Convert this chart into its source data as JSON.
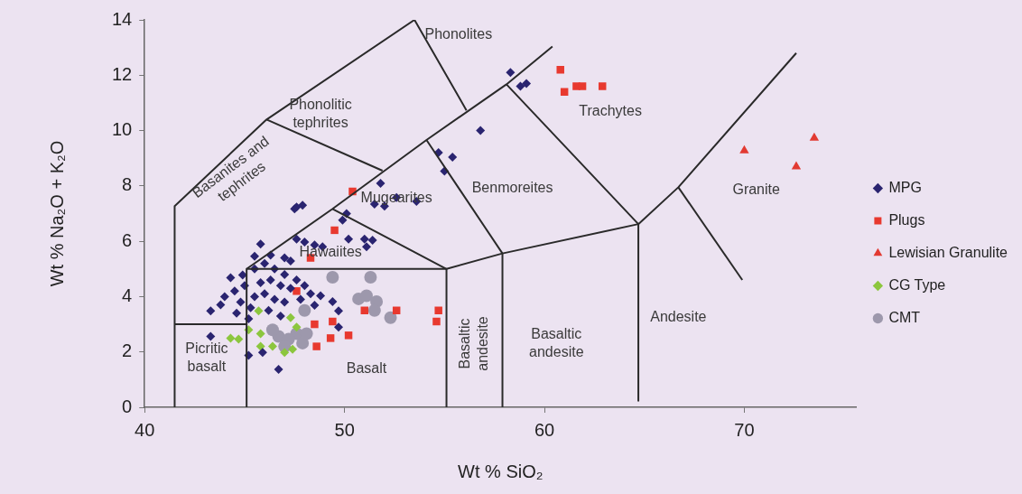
{
  "chart_data": {
    "type": "scatter",
    "xlabel": "Wt % SiO₂",
    "ylabel": "Wt % Na₂O + K₂O",
    "xlim": [
      40,
      75.6
    ],
    "ylim": [
      0,
      14
    ],
    "xticks": [
      40,
      50,
      60,
      70
    ],
    "yticks": [
      0,
      2,
      4,
      6,
      8,
      10,
      12,
      14
    ],
    "grid": false,
    "legend": "right",
    "series": [
      {
        "type": "line",
        "marker": "none",
        "color": "#2a2a2a",
        "x": [
          41.5,
          41.5,
          46.1,
          53.5,
          56.1
        ],
        "values": [
          0,
          7.27,
          10.4,
          14.0,
          10.73
        ]
      },
      {
        "type": "line",
        "marker": "none",
        "color": "#2a2a2a",
        "x": [
          41.5,
          45.1
        ],
        "values": [
          3.0,
          3.0
        ]
      },
      {
        "type": "line",
        "marker": "none",
        "color": "#2a2a2a",
        "x": [
          45.1,
          45.1,
          55.1,
          55.1
        ],
        "values": [
          0,
          5.0,
          5.0,
          0
        ]
      },
      {
        "type": "line",
        "marker": "none",
        "color": "#2a2a2a",
        "x": [
          45.1,
          49.4,
          54.1,
          58.1,
          60.4
        ],
        "values": [
          5.0,
          7.17,
          9.66,
          11.67,
          13.04
        ]
      },
      {
        "type": "line",
        "marker": "none",
        "color": "#2a2a2a",
        "x": [
          46.1,
          51.9
        ],
        "values": [
          10.4,
          8.55
        ]
      },
      {
        "type": "line",
        "marker": "none",
        "color": "#2a2a2a",
        "x": [
          49.4,
          55.1,
          57.9,
          64.7
        ],
        "values": [
          7.17,
          5.0,
          5.56,
          6.62
        ]
      },
      {
        "type": "line",
        "marker": "none",
        "color": "#2a2a2a",
        "x": [
          54.1,
          57.9,
          57.9
        ],
        "values": [
          9.66,
          5.56,
          0
        ]
      },
      {
        "type": "line",
        "marker": "none",
        "color": "#2a2a2a",
        "x": [
          58.1,
          64.7,
          64.7
        ],
        "values": [
          11.67,
          6.62,
          0.24
        ]
      },
      {
        "type": "line",
        "marker": "none",
        "color": "#2a2a2a",
        "x": [
          64.7,
          66.7,
          72.6
        ],
        "values": [
          6.62,
          7.95,
          12.8
        ]
      },
      {
        "type": "line",
        "marker": "none",
        "color": "#2a2a2a",
        "x": [
          66.7,
          69.9
        ],
        "values": [
          7.95,
          4.6
        ]
      },
      {
        "name": "MPG",
        "marker": "diamond",
        "color": "#2a2470",
        "x": [
          58.3,
          58.8,
          59.1,
          56.8,
          54.7,
          55.4,
          55.0,
          52.6,
          53.6,
          51.8,
          51.5,
          52.0,
          47.6,
          47.9,
          50.1,
          49.9,
          50.2,
          51.0,
          51.4,
          51.1,
          48.0,
          48.5,
          48.9,
          47.6,
          47.3,
          48.8,
          49.4,
          48.5,
          49.7,
          49.7,
          46.7,
          47.5,
          45.8,
          45.5,
          44.3,
          44.9,
          43.3,
          43.3,
          45.2,
          45.9,
          45.5,
          46.0,
          46.5,
          47.0,
          45.8,
          46.3,
          46.8,
          47.3,
          45.5,
          46.0,
          46.5,
          47.0,
          45.3,
          46.2,
          46.8,
          44.8,
          44.5,
          45.0,
          45.2,
          44.6,
          47.6,
          46.3,
          47.0,
          44.0,
          43.8,
          48.0,
          47.8,
          48.3
        ],
        "values": [
          12.1,
          11.6,
          11.7,
          10.0,
          9.2,
          9.04,
          8.53,
          7.58,
          7.44,
          8.09,
          7.34,
          7.27,
          7.24,
          7.3,
          7.0,
          6.76,
          6.08,
          6.08,
          6.04,
          5.8,
          5.97,
          5.87,
          5.8,
          6.08,
          5.29,
          4.03,
          3.82,
          3.69,
          3.48,
          2.9,
          1.37,
          7.17,
          5.9,
          5.46,
          4.68,
          4.78,
          3.48,
          2.56,
          1.88,
          1.98,
          5.0,
          5.2,
          5.0,
          4.8,
          4.5,
          4.6,
          4.4,
          4.3,
          4.0,
          4.1,
          3.9,
          3.8,
          3.6,
          3.5,
          3.3,
          3.8,
          4.2,
          4.4,
          3.2,
          3.4,
          4.6,
          5.5,
          5.4,
          4.0,
          3.7,
          4.4,
          3.9,
          4.1
        ]
      },
      {
        "name": "Plugs",
        "marker": "square",
        "color": "#e8392f",
        "x": [
          60.8,
          61.0,
          61.6,
          61.9,
          62.9,
          50.4,
          49.5,
          48.3,
          47.6,
          51.0,
          52.6,
          54.7,
          54.6,
          48.5,
          49.4,
          49.3,
          50.2,
          48.6
        ],
        "values": [
          12.2,
          11.4,
          11.6,
          11.6,
          11.6,
          7.8,
          6.4,
          5.4,
          4.2,
          3.5,
          3.5,
          3.5,
          3.1,
          3.0,
          3.1,
          2.5,
          2.6,
          2.2
        ]
      },
      {
        "name": "Lewisian Granulite",
        "marker": "triangle",
        "color": "#e23a32",
        "x": [
          70.0,
          73.5,
          72.6
        ],
        "values": [
          9.28,
          9.73,
          8.7
        ]
      },
      {
        "name": "CG Type",
        "marker": "diamond",
        "color": "#8cc63e",
        "x": [
          45.7,
          47.3,
          44.3,
          45.2,
          45.8,
          46.4,
          47.0,
          47.4,
          44.7,
          45.8,
          47.6
        ],
        "values": [
          3.48,
          3.24,
          2.5,
          2.8,
          2.66,
          2.2,
          1.98,
          2.1,
          2.46,
          2.2,
          2.9
        ]
      },
      {
        "name": "CMT",
        "marker": "circle",
        "color": "#9d98ac",
        "x": [
          49.4,
          51.3,
          50.7,
          51.1,
          51.6,
          51.5,
          52.3,
          48.0,
          47.6,
          46.7,
          46.4,
          47.2,
          47.9,
          48.1,
          47.0
        ],
        "values": [
          4.7,
          4.7,
          3.92,
          4.03,
          3.82,
          3.5,
          3.24,
          3.5,
          2.66,
          2.56,
          2.8,
          2.46,
          2.32,
          2.66,
          2.2
        ]
      }
    ],
    "annotations": [
      "Phonolites",
      "Phonolitic\ntephrites",
      "Basanites and\ntephrites",
      "Trachytes",
      "Benmoreites",
      "Mugearites",
      "Hawaiites",
      "Picritic\nbasalt",
      "Basalt",
      "Basaltic\nandesite",
      "Basaltic\nandesite",
      "Andesite",
      "Granite"
    ]
  }
}
